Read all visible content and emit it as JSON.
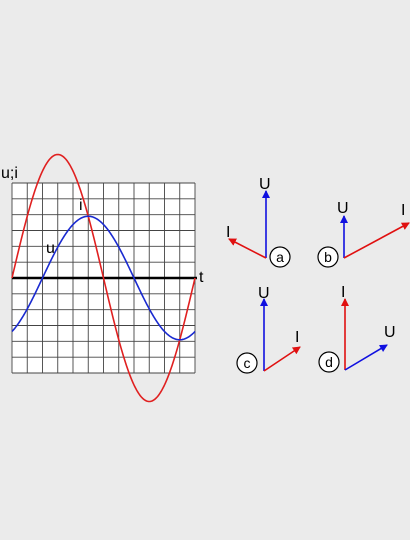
{
  "graph": {
    "y_axis_label": "u;i",
    "t_label": "t",
    "curves": [
      {
        "id": "i",
        "label": "i",
        "color": "#e02020",
        "amplitude": 4,
        "phase_deg": 0
      },
      {
        "id": "u",
        "label": "u",
        "color": "#1a2ad0",
        "amplitude": 2,
        "phase_deg": -60
      }
    ]
  },
  "options": [
    {
      "letter": "a",
      "U_label": "U",
      "I_label": "I"
    },
    {
      "letter": "b",
      "U_label": "U",
      "I_label": "I"
    },
    {
      "letter": "c",
      "U_label": "U",
      "I_label": "I"
    },
    {
      "letter": "d",
      "U_label": "U",
      "I_label": "I"
    }
  ],
  "colors": {
    "U": "#1010e0",
    "I": "#e01010",
    "axis": "#000000",
    "grid": "#444444"
  }
}
